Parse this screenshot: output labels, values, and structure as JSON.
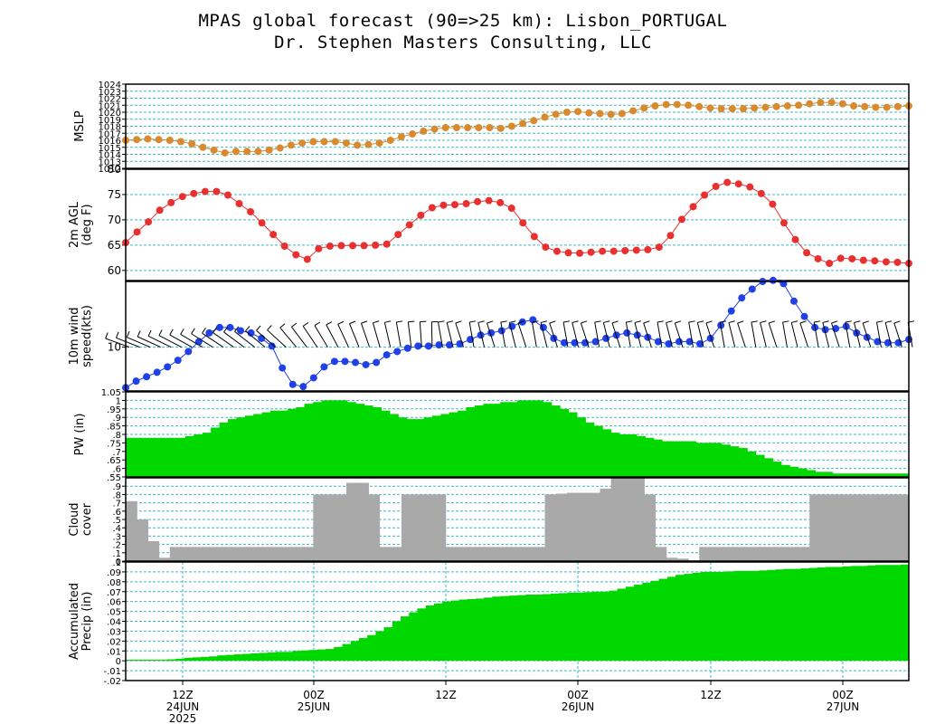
{
  "titles": {
    "line1": "MPAS global forecast (90=>25 km): Lisbon_PORTUGAL",
    "line2": "Dr. Stephen Masters Consulting, LLC"
  },
  "colors": {
    "mslp": "#d98a2e",
    "temp": "#e83030",
    "wind": "#2040e8",
    "pw": "#00d800",
    "cloud": "#a9a9a9",
    "precip": "#00d800",
    "grid": "#3fb9c4"
  },
  "chart_data": [
    {
      "type": "line",
      "panel": "mslp",
      "ylabel": [
        "MSLP"
      ],
      "ylim": [
        1012,
        1024
      ],
      "yticks": [
        1012,
        1013,
        1014,
        1015,
        1016,
        1017,
        1018,
        1019,
        1020,
        1021,
        1022,
        1023,
        1024
      ],
      "values": [
        1016,
        1016.1,
        1016.2,
        1016.1,
        1016,
        1015.8,
        1015.5,
        1015,
        1014.6,
        1014.2,
        1014.4,
        1014.4,
        1014.4,
        1014.6,
        1014.9,
        1015.3,
        1015.6,
        1015.8,
        1015.8,
        1015.8,
        1015.6,
        1015.3,
        1015.4,
        1015.6,
        1016,
        1016.5,
        1016.9,
        1017.3,
        1017.6,
        1017.8,
        1017.8,
        1017.8,
        1017.8,
        1017.8,
        1017.7,
        1018,
        1018.4,
        1018.8,
        1019.3,
        1019.7,
        1020,
        1020.1,
        1019.9,
        1019.8,
        1019.7,
        1019.8,
        1020.2,
        1020.6,
        1020.9,
        1021.1,
        1021.1,
        1021,
        1020.8,
        1020.6,
        1020.5,
        1020.5,
        1020.5,
        1020.6,
        1020.7,
        1020.8,
        1020.9,
        1021,
        1021.2,
        1021.4,
        1021.4,
        1021.2,
        1020.9,
        1020.8,
        1020.7,
        1020.7,
        1020.8,
        1020.9
      ]
    },
    {
      "type": "line",
      "panel": "temp",
      "ylabel": [
        "2m AGL",
        "(deg F)"
      ],
      "ylim": [
        58,
        80
      ],
      "yticks": [
        60,
        65,
        70,
        75,
        80
      ],
      "values": [
        65.5,
        67.6,
        69.6,
        71.9,
        73.4,
        74.6,
        75.2,
        75.6,
        75.6,
        74.9,
        73.2,
        71.6,
        69.4,
        67.1,
        64.8,
        63.1,
        62.2,
        64.3,
        64.8,
        64.9,
        64.9,
        64.9,
        65,
        65.2,
        67.1,
        69,
        70.9,
        72.4,
        72.9,
        73,
        73.2,
        73.6,
        73.8,
        73.4,
        72.3,
        69.4,
        66.7,
        64.6,
        63.8,
        63.5,
        63.4,
        63.6,
        63.8,
        63.8,
        63.9,
        64,
        64.1,
        64.6,
        66.9,
        70.1,
        72.6,
        74.9,
        76.6,
        77.4,
        77.1,
        76.5,
        75.2,
        73.1,
        69.4,
        66.1,
        63.5,
        62.3,
        61.4,
        62.4,
        62.3,
        62,
        61.9,
        61.7,
        61.6,
        61.4
      ]
    },
    {
      "type": "line",
      "panel": "wind",
      "ylabel": [
        "10m wind",
        "speed(kts)"
      ],
      "ylim": [
        6,
        16
      ],
      "yticks": [
        10
      ],
      "values": [
        6.3,
        6.9,
        7.3,
        7.7,
        8.2,
        8.8,
        9.6,
        10.5,
        11.3,
        11.8,
        11.8,
        11.5,
        11.3,
        10.8,
        10.1,
        8.1,
        6.6,
        6.4,
        7.2,
        8.2,
        8.7,
        8.7,
        8.6,
        8.4,
        8.6,
        9.3,
        9.6,
        9.9,
        10.1,
        10.1,
        10.2,
        10.2,
        10.3,
        10.7,
        11.1,
        11.3,
        11.5,
        11.9,
        12.3,
        12.5,
        11.8,
        10.8,
        10.4,
        10.4,
        10.4,
        10.5,
        10.8,
        11.1,
        11.3,
        11.1,
        10.9,
        10.5,
        10.3,
        10.5,
        10.5,
        10.3,
        10.8,
        12,
        13.3,
        14.5,
        15.3,
        16,
        16.1,
        15.8,
        14.2,
        12.8,
        11.8,
        11.6,
        11.7,
        11.9,
        11.3,
        10.9,
        10.5,
        10.4,
        10.4,
        10.7
      ]
    },
    {
      "type": "area",
      "panel": "pw",
      "ylabel": [
        "PW (in)"
      ],
      "ylim": [
        0.55,
        1.05
      ],
      "yticks": [
        0.55,
        0.6,
        0.65,
        0.7,
        0.75,
        0.8,
        0.85,
        0.9,
        0.95,
        1.0,
        1.05
      ],
      "values": [
        0.78,
        0.78,
        0.78,
        0.78,
        0.78,
        0.78,
        0.78,
        0.79,
        0.8,
        0.81,
        0.84,
        0.87,
        0.89,
        0.9,
        0.91,
        0.92,
        0.93,
        0.94,
        0.94,
        0.95,
        0.96,
        0.98,
        0.99,
        1.0,
        1.0,
        1.0,
        0.99,
        0.98,
        0.97,
        0.96,
        0.94,
        0.92,
        0.9,
        0.89,
        0.89,
        0.9,
        0.91,
        0.92,
        0.93,
        0.94,
        0.96,
        0.97,
        0.98,
        0.98,
        0.99,
        0.99,
        1.0,
        1.0,
        1.0,
        0.99,
        0.97,
        0.95,
        0.93,
        0.9,
        0.87,
        0.85,
        0.83,
        0.81,
        0.8,
        0.8,
        0.79,
        0.78,
        0.77,
        0.76,
        0.76,
        0.76,
        0.76,
        0.75,
        0.75,
        0.75,
        0.74,
        0.73,
        0.72,
        0.7,
        0.68,
        0.66,
        0.64,
        0.62,
        0.61,
        0.6,
        0.59,
        0.58,
        0.58,
        0.57,
        0.57,
        0.57,
        0.57,
        0.57,
        0.57,
        0.57,
        0.57,
        0.57
      ]
    },
    {
      "type": "area",
      "panel": "cloud",
      "ylabel": [
        "Cloud",
        "cover"
      ],
      "ylim": [
        0,
        1
      ],
      "yticks": [
        0,
        0.1,
        0.2,
        0.3,
        0.4,
        0.5,
        0.6,
        0.7,
        0.8,
        0.9
      ],
      "values": [
        0.72,
        0.5,
        0.24,
        0.04,
        0.17,
        0.17,
        0.17,
        0.17,
        0.17,
        0.17,
        0.17,
        0.17,
        0.17,
        0.17,
        0.17,
        0.17,
        0.17,
        0.8,
        0.8,
        0.8,
        0.94,
        0.94,
        0.8,
        0.17,
        0.17,
        0.8,
        0.8,
        0.8,
        0.8,
        0.17,
        0.17,
        0.17,
        0.17,
        0.17,
        0.17,
        0.17,
        0.17,
        0.17,
        0.8,
        0.81,
        0.82,
        0.82,
        0.82,
        0.87,
        1.0,
        1.0,
        1.0,
        0.8,
        0.17,
        0.04,
        0.03,
        0.01,
        0.17,
        0.17,
        0.17,
        0.17,
        0.17,
        0.17,
        0.17,
        0.17,
        0.17,
        0.17,
        0.8,
        0.8,
        0.8,
        0.8,
        0.8,
        0.8,
        0.8,
        0.8,
        0.8
      ]
    },
    {
      "type": "area",
      "panel": "precip",
      "ylabel": [
        "Accumulated",
        "Precip (in)"
      ],
      "ylim": [
        -0.02,
        0.1
      ],
      "yticks": [
        -0.02,
        -0.01,
        0,
        0.01,
        0.02,
        0.03,
        0.04,
        0.05,
        0.06,
        0.07,
        0.08,
        0.09,
        0.1
      ],
      "values": [
        0.001,
        0.001,
        0.001,
        0.001,
        0.001,
        0.0015,
        0.002,
        0.003,
        0.0035,
        0.004,
        0.0045,
        0.0055,
        0.006,
        0.0065,
        0.007,
        0.0075,
        0.008,
        0.0085,
        0.009,
        0.009,
        0.01,
        0.0105,
        0.011,
        0.0115,
        0.012,
        0.014,
        0.017,
        0.02,
        0.023,
        0.026,
        0.03,
        0.034,
        0.04,
        0.045,
        0.049,
        0.053,
        0.056,
        0.058,
        0.06,
        0.061,
        0.062,
        0.0625,
        0.063,
        0.064,
        0.065,
        0.0655,
        0.066,
        0.0665,
        0.067,
        0.067,
        0.0675,
        0.068,
        0.0685,
        0.069,
        0.069,
        0.0695,
        0.07,
        0.07,
        0.071,
        0.073,
        0.075,
        0.077,
        0.079,
        0.081,
        0.083,
        0.085,
        0.087,
        0.088,
        0.089,
        0.09,
        0.09,
        0.09,
        0.0905,
        0.091,
        0.091,
        0.091,
        0.0915,
        0.092,
        0.0925,
        0.093,
        0.093,
        0.0935,
        0.094,
        0.0945,
        0.095,
        0.095,
        0.0955,
        0.096,
        0.096,
        0.0965,
        0.097,
        0.097,
        0.097,
        0.0975
      ]
    }
  ],
  "x_axis": {
    "tick_labels": [
      {
        "line1": "12Z",
        "line2": "24JUN",
        "line3": "2025"
      },
      {
        "line1": "00Z",
        "line2": "25JUN",
        "line3": ""
      },
      {
        "line1": "12Z",
        "line2": "",
        "line3": ""
      },
      {
        "line1": "00Z",
        "line2": "26JUN",
        "line3": ""
      },
      {
        "line1": "12Z",
        "line2": "",
        "line3": ""
      },
      {
        "line1": "00Z",
        "line2": "27JUN",
        "line3": ""
      }
    ]
  }
}
